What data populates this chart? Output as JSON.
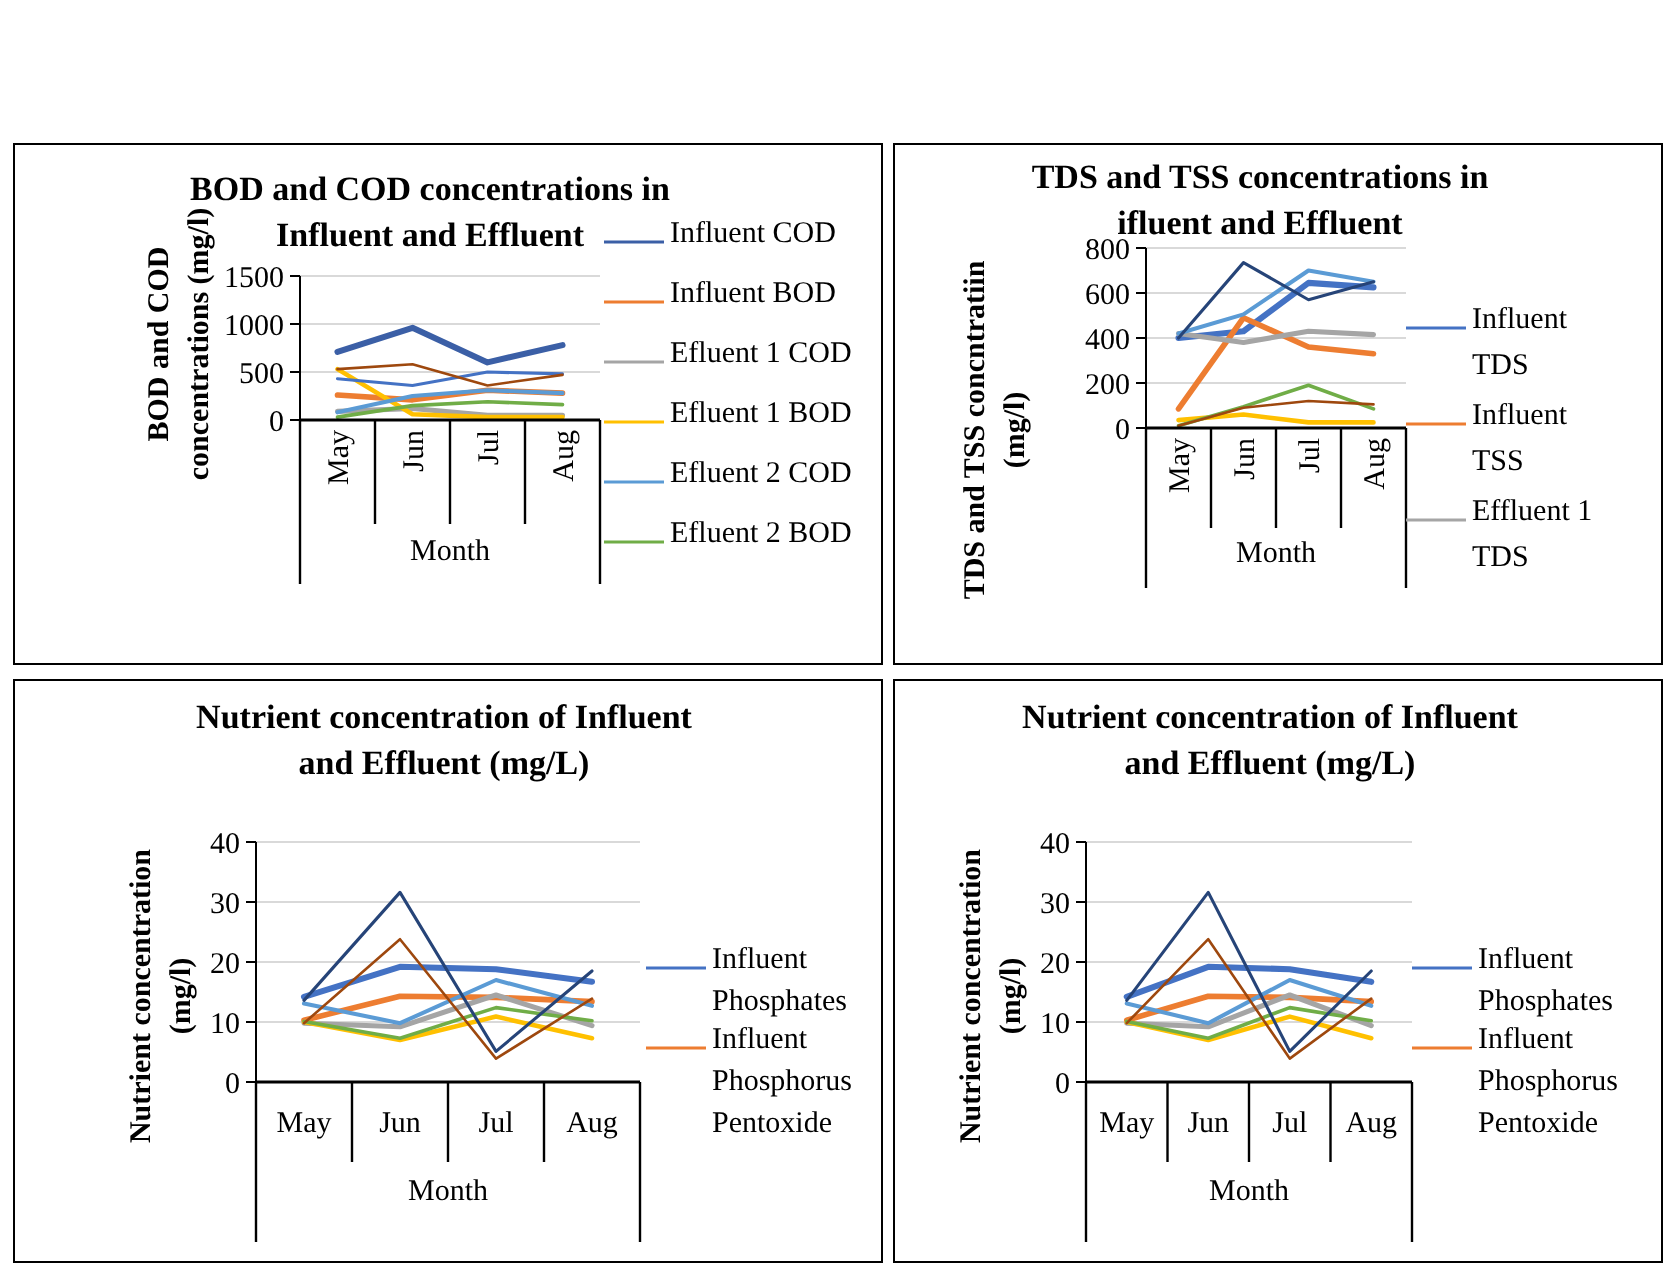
{
  "chart_data": [
    {
      "type": "line",
      "title": "BOD and COD concentrations in Influent and Effluent",
      "xlabel": "Month",
      "ylabel": "BOD and COD concentrations (mg/l)",
      "categories": [
        "May",
        "Jun",
        "Jul",
        "Aug"
      ],
      "ylim": [
        0,
        1500
      ],
      "yticks": [
        0,
        500,
        1000,
        1500
      ],
      "grid": "y",
      "legend": "right",
      "series": [
        {
          "name": "Influent COD",
          "color": "#3b5fa6",
          "values": [
            710,
            960,
            600,
            780
          ]
        },
        {
          "name": "Influent BOD",
          "color": "#ed7d31",
          "values": [
            260,
            210,
            310,
            280
          ]
        },
        {
          "name": "Efluent 1 COD",
          "color": "#a5a5a5",
          "values": [
            90,
            120,
            50,
            50
          ]
        },
        {
          "name": "Efluent 1 BOD",
          "color": "#ffc000",
          "values": [
            530,
            60,
            30,
            30
          ]
        },
        {
          "name": "Efluent 2 COD",
          "color": "#5b9bd5",
          "values": [
            80,
            250,
            310,
            280
          ]
        },
        {
          "name": "Efluent 2 BOD",
          "color": "#70ad47",
          "values": [
            30,
            150,
            190,
            160
          ]
        },
        {
          "color": "#4472c4",
          "values": [
            430,
            360,
            500,
            480
          ]
        },
        {
          "color": "#9e480e",
          "values": [
            530,
            580,
            360,
            470
          ]
        }
      ]
    },
    {
      "type": "line",
      "title": "TDS and TSS concentrations in ifluent and Effluent",
      "xlabel": "Month",
      "ylabel": "TDS and TSS concntratiin (mg/l)",
      "categories": [
        "May",
        "Jun",
        "Jul",
        "Aug"
      ],
      "ylim": [
        0,
        800
      ],
      "yticks": [
        0,
        200,
        400,
        600,
        800
      ],
      "grid": "y",
      "legend": "right",
      "series": [
        {
          "name": "Influent TDS",
          "color": "#4472c4",
          "values": [
            400,
            430,
            645,
            625
          ]
        },
        {
          "name": "Influent TSS",
          "color": "#ed7d31",
          "values": [
            85,
            490,
            360,
            330
          ]
        },
        {
          "name": "Effluent 1 TDS",
          "color": "#a5a5a5",
          "values": [
            420,
            380,
            430,
            415
          ]
        },
        {
          "color": "#ffc000",
          "values": [
            35,
            60,
            25,
            25
          ]
        },
        {
          "color": "#5b9bd5",
          "values": [
            420,
            505,
            700,
            650
          ]
        },
        {
          "color": "#70ad47",
          "values": [
            10,
            95,
            190,
            85
          ]
        },
        {
          "color": "#264478",
          "values": [
            400,
            735,
            570,
            650
          ]
        },
        {
          "color": "#9e480e",
          "values": [
            10,
            90,
            120,
            105
          ]
        }
      ]
    },
    {
      "type": "line",
      "title": "Nutrient concentration of Influent and Effluent (mg/L)",
      "xlabel": "Month",
      "ylabel": "Nutrient concentration (mg/l)",
      "categories": [
        "May",
        "Jun",
        "Jul",
        "Aug"
      ],
      "ylim": [
        0,
        40
      ],
      "yticks": [
        0,
        10,
        20,
        30,
        40
      ],
      "grid": "y",
      "legend": "right",
      "series": [
        {
          "name": "Influent Phosphates",
          "color": "#4472c4",
          "values": [
            14.2,
            19.2,
            18.8,
            16.7
          ]
        },
        {
          "name": "Influent Phosphorus Pentoxide",
          "color": "#ed7d31",
          "values": [
            10.3,
            14.3,
            14.1,
            13.4
          ]
        },
        {
          "color": "#a5a5a5",
          "values": [
            9.8,
            9.2,
            14.5,
            9.4
          ]
        },
        {
          "color": "#ffc000",
          "values": [
            10,
            7,
            10.9,
            7.3
          ]
        },
        {
          "color": "#5b9bd5",
          "values": [
            13.1,
            9.8,
            17,
            12.7
          ]
        },
        {
          "color": "#70ad47",
          "values": [
            10.1,
            7.3,
            12.4,
            10.2
          ]
        },
        {
          "color": "#264478",
          "values": [
            13.6,
            31.6,
            5.1,
            18.5
          ]
        },
        {
          "color": "#9e480e",
          "values": [
            9.8,
            23.8,
            3.9,
            13.9
          ]
        }
      ]
    },
    {
      "type": "line",
      "title": "Nutrient concentration of Influent and Effluent (mg/L)",
      "xlabel": "Month",
      "ylabel": "Nutrient concentration (mg/l)",
      "categories": [
        "May",
        "Jun",
        "Jul",
        "Aug"
      ],
      "ylim": [
        0,
        40
      ],
      "yticks": [
        0,
        10,
        20,
        30,
        40
      ],
      "grid": "y",
      "legend": "right",
      "series": [
        {
          "name": "Influent Phosphates",
          "color": "#4472c4",
          "values": [
            14.2,
            19.2,
            18.8,
            16.7
          ]
        },
        {
          "name": "Influent Phosphorus Pentoxide",
          "color": "#ed7d31",
          "values": [
            10.3,
            14.3,
            14.1,
            13.4
          ]
        },
        {
          "color": "#a5a5a5",
          "values": [
            9.8,
            9.2,
            14.5,
            9.4
          ]
        },
        {
          "color": "#ffc000",
          "values": [
            10,
            7,
            10.9,
            7.3
          ]
        },
        {
          "color": "#5b9bd5",
          "values": [
            13.1,
            9.8,
            17,
            12.7
          ]
        },
        {
          "color": "#70ad47",
          "values": [
            10.1,
            7.3,
            12.4,
            10.2
          ]
        },
        {
          "color": "#264478",
          "values": [
            13.6,
            31.6,
            5.1,
            18.5
          ]
        },
        {
          "color": "#9e480e",
          "values": [
            9.8,
            23.8,
            3.9,
            13.9
          ]
        }
      ]
    }
  ]
}
